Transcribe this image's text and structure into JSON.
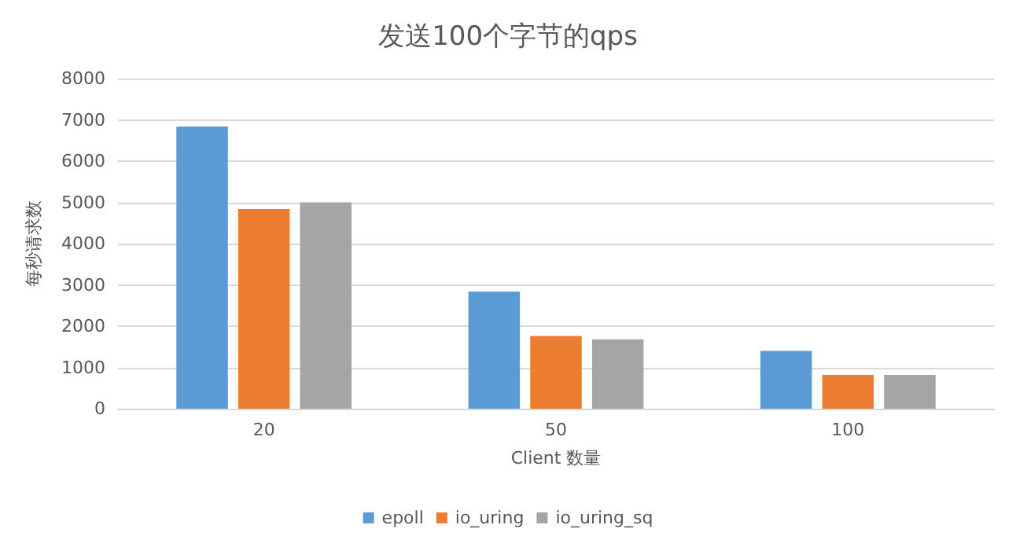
{
  "chart_data": {
    "type": "bar",
    "title": "发送100个字节的qps",
    "xlabel": "Client 数量",
    "ylabel": "每秒请求数",
    "categories": [
      "20",
      "50",
      "100"
    ],
    "series": [
      {
        "name": "epoll",
        "color": "#5b9bd5",
        "values": [
          6840,
          2840,
          1400
        ]
      },
      {
        "name": "io_uring",
        "color": "#ed7d31",
        "values": [
          4840,
          1760,
          820
        ]
      },
      {
        "name": "io_uring_sq",
        "color": "#a5a5a5",
        "values": [
          5000,
          1680,
          820
        ]
      }
    ],
    "ylim": [
      0,
      8000
    ],
    "yticks": [
      0,
      1000,
      2000,
      3000,
      4000,
      5000,
      6000,
      7000,
      8000
    ],
    "grid": "y",
    "legend": "bottom"
  }
}
